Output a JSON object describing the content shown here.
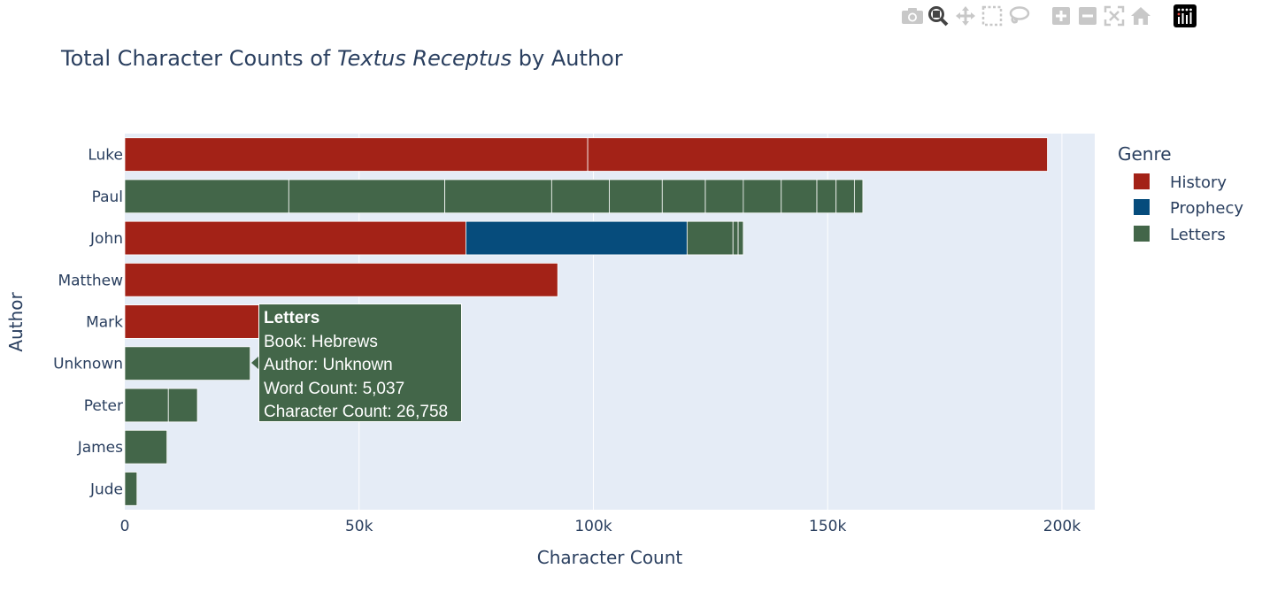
{
  "toolbar": {
    "icons": [
      "camera-icon",
      "zoom-icon",
      "pan-icon",
      "box-select-icon",
      "lasso-select-icon",
      "zoom-in-icon",
      "zoom-out-icon",
      "autoscale-icon",
      "reset-axes-icon",
      "plotly-logo-icon"
    ]
  },
  "tooltip": {
    "header": "Letters",
    "lines": [
      "Book: Hebrews",
      "Author: Unknown",
      "Word Count: 5,037",
      "Character Count: 26,758"
    ]
  },
  "colors": {
    "History": "#a32217",
    "Prophecy": "#064c7c",
    "Letters": "#436649",
    "plot_bg": "#e5ecf6",
    "text": "#2a3f5f"
  },
  "chart_data": {
    "type": "bar",
    "orientation": "horizontal",
    "barmode": "stack",
    "title_plain": "Total Character Counts of ",
    "title_italic": "Textus Receptus",
    "title_suffix": " by Author",
    "xlabel": "Character Count",
    "ylabel": "Author",
    "xlim": [
      0,
      207000
    ],
    "xticks": [
      0,
      50000,
      100000,
      150000,
      200000
    ],
    "xtick_labels": [
      "0",
      "50k",
      "100k",
      "150k",
      "200k"
    ],
    "grid": true,
    "legend_title": "Genre",
    "legend_position": "right",
    "categories": [
      "Luke",
      "Paul",
      "John",
      "Matthew",
      "Mark",
      "Unknown",
      "Peter",
      "James",
      "Jude"
    ],
    "series": [
      {
        "name": "History",
        "segments": [
          {
            "author": "Luke",
            "value": 98800
          },
          {
            "author": "Luke",
            "value": 98100
          },
          {
            "author": "John",
            "value": 72800
          },
          {
            "author": "Matthew",
            "value": 92400
          },
          {
            "author": "Mark",
            "value": 57000
          }
        ]
      },
      {
        "name": "Prophecy",
        "segments": [
          {
            "author": "John",
            "value": 47200
          }
        ]
      },
      {
        "name": "Letters",
        "segments": [
          {
            "author": "Paul",
            "value": 35000
          },
          {
            "author": "Paul",
            "value": 33300
          },
          {
            "author": "Paul",
            "value": 22800
          },
          {
            "author": "Paul",
            "value": 12300
          },
          {
            "author": "Paul",
            "value": 11300
          },
          {
            "author": "Paul",
            "value": 9200
          },
          {
            "author": "Paul",
            "value": 8100
          },
          {
            "author": "Paul",
            "value": 8100
          },
          {
            "author": "Paul",
            "value": 7600
          },
          {
            "author": "Paul",
            "value": 4100
          },
          {
            "author": "Paul",
            "value": 3900
          },
          {
            "author": "Paul",
            "value": 1800
          },
          {
            "author": "John",
            "value": 9800
          },
          {
            "author": "John",
            "value": 1100
          },
          {
            "author": "John",
            "value": 1100
          },
          {
            "author": "Unknown",
            "value": 26758
          },
          {
            "author": "Peter",
            "value": 9300
          },
          {
            "author": "Peter",
            "value": 6200
          },
          {
            "author": "James",
            "value": 9000
          },
          {
            "author": "Jude",
            "value": 2600
          }
        ]
      }
    ]
  }
}
